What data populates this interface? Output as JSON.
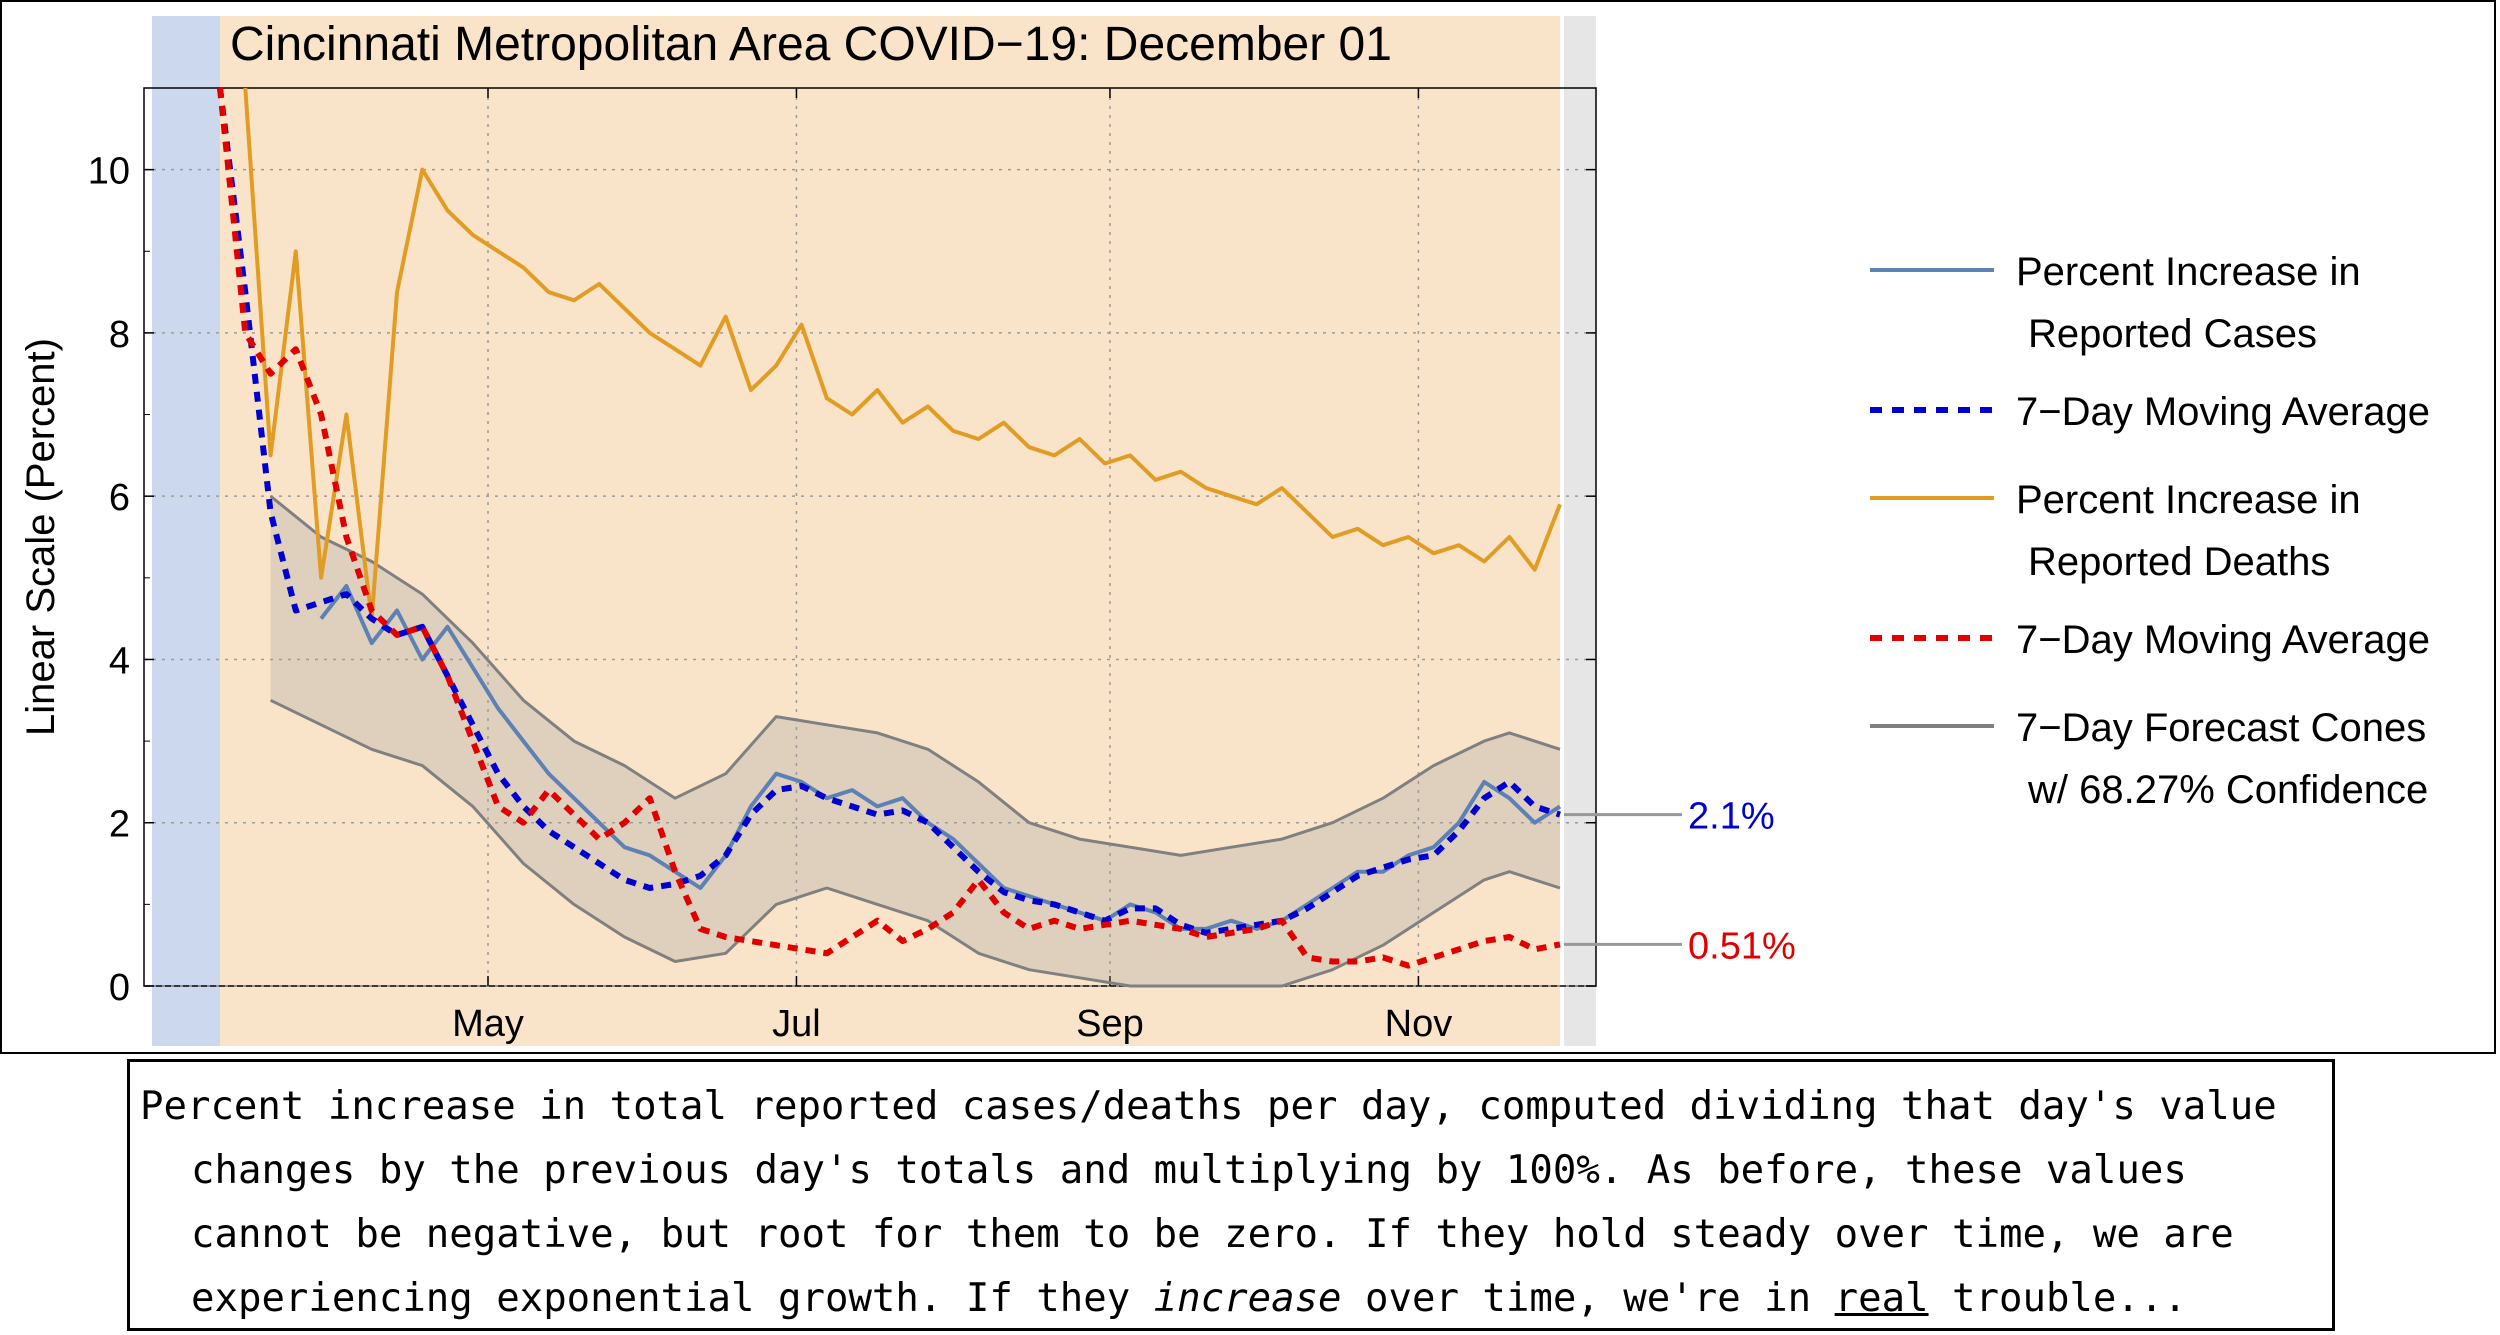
{
  "chart_data": {
    "type": "line",
    "title": "Cincinnati Metropolitan Area COVID−19: December 01",
    "xlabel": "",
    "ylabel": "Linear Scale (Percent)",
    "ylim": [
      0,
      11
    ],
    "x_domain_days": [
      0,
      265
    ],
    "x_origin_date": "2020-03-09",
    "x_ticks": [
      {
        "label": "May",
        "day": 53
      },
      {
        "label": "Jul",
        "day": 114
      },
      {
        "label": "Sep",
        "day": 176
      },
      {
        "label": "Nov",
        "day": 237
      }
    ],
    "y_ticks": [
      0,
      2,
      4,
      6,
      8,
      10
    ],
    "grid": true,
    "legend_position": "right",
    "legend": [
      {
        "id": "cases",
        "line1": "Percent Increase in",
        "line2": "Reported Cases",
        "color": "#5e81b5",
        "dash": "solid"
      },
      {
        "id": "cases_avg",
        "line1": "7−Day Moving Average",
        "line2": "",
        "color": "#0000d0",
        "dash": "dashed"
      },
      {
        "id": "deaths",
        "line1": "Percent Increase in",
        "line2": "Reported Deaths",
        "color": "#e19c24",
        "dash": "solid"
      },
      {
        "id": "deaths_avg",
        "line1": "7−Day Moving Average",
        "line2": "",
        "color": "#e00000",
        "dash": "dashed"
      },
      {
        "id": "forecast",
        "line1": "7−Day Forecast Cones",
        "line2": "w/ 68.27% Confidence",
        "color": "#808080",
        "dash": "solid"
      }
    ],
    "end_labels": [
      {
        "text": "2.1%",
        "value": 2.1,
        "color": "#0000d0"
      },
      {
        "text": "0.51%",
        "value": 0.51,
        "color": "#e00000"
      }
    ],
    "series": [
      {
        "name": "Percent Increase in Reported Cases",
        "color": "#5e81b5",
        "points": [
          [
            20,
            4.5
          ],
          [
            25,
            4.9
          ],
          [
            30,
            4.2
          ],
          [
            35,
            4.6
          ],
          [
            40,
            4.0
          ],
          [
            45,
            4.4
          ],
          [
            50,
            3.9
          ],
          [
            55,
            3.4
          ],
          [
            60,
            3.0
          ],
          [
            65,
            2.6
          ],
          [
            70,
            2.3
          ],
          [
            75,
            2.0
          ],
          [
            80,
            1.7
          ],
          [
            85,
            1.6
          ],
          [
            90,
            1.4
          ],
          [
            95,
            1.2
          ],
          [
            100,
            1.6
          ],
          [
            105,
            2.2
          ],
          [
            110,
            2.6
          ],
          [
            115,
            2.5
          ],
          [
            120,
            2.3
          ],
          [
            125,
            2.4
          ],
          [
            130,
            2.2
          ],
          [
            135,
            2.3
          ],
          [
            140,
            2.0
          ],
          [
            145,
            1.8
          ],
          [
            150,
            1.5
          ],
          [
            155,
            1.2
          ],
          [
            160,
            1.1
          ],
          [
            165,
            1.0
          ],
          [
            170,
            0.9
          ],
          [
            175,
            0.8
          ],
          [
            180,
            1.0
          ],
          [
            185,
            0.9
          ],
          [
            190,
            0.7
          ],
          [
            195,
            0.7
          ],
          [
            200,
            0.8
          ],
          [
            205,
            0.7
          ],
          [
            210,
            0.8
          ],
          [
            215,
            1.0
          ],
          [
            220,
            1.2
          ],
          [
            225,
            1.4
          ],
          [
            230,
            1.4
          ],
          [
            235,
            1.6
          ],
          [
            240,
            1.7
          ],
          [
            245,
            2.0
          ],
          [
            250,
            2.5
          ],
          [
            255,
            2.3
          ],
          [
            260,
            2.0
          ],
          [
            265,
            2.2
          ]
        ]
      },
      {
        "name": "Cases 7-Day Moving Average",
        "color": "#0000d0",
        "points": [
          [
            0,
            11.0
          ],
          [
            5,
            8.5
          ],
          [
            10,
            5.8
          ],
          [
            15,
            4.6
          ],
          [
            20,
            4.7
          ],
          [
            25,
            4.8
          ],
          [
            30,
            4.5
          ],
          [
            35,
            4.3
          ],
          [
            40,
            4.4
          ],
          [
            45,
            3.8
          ],
          [
            50,
            3.2
          ],
          [
            55,
            2.6
          ],
          [
            60,
            2.2
          ],
          [
            65,
            1.9
          ],
          [
            70,
            1.7
          ],
          [
            75,
            1.5
          ],
          [
            80,
            1.3
          ],
          [
            85,
            1.2
          ],
          [
            90,
            1.25
          ],
          [
            95,
            1.35
          ],
          [
            100,
            1.6
          ],
          [
            105,
            2.1
          ],
          [
            110,
            2.4
          ],
          [
            115,
            2.45
          ],
          [
            120,
            2.3
          ],
          [
            125,
            2.2
          ],
          [
            130,
            2.1
          ],
          [
            135,
            2.15
          ],
          [
            140,
            2.0
          ],
          [
            145,
            1.7
          ],
          [
            150,
            1.4
          ],
          [
            155,
            1.15
          ],
          [
            160,
            1.05
          ],
          [
            165,
            1.0
          ],
          [
            170,
            0.9
          ],
          [
            175,
            0.8
          ],
          [
            180,
            0.95
          ],
          [
            185,
            0.95
          ],
          [
            190,
            0.75
          ],
          [
            195,
            0.65
          ],
          [
            200,
            0.7
          ],
          [
            205,
            0.75
          ],
          [
            210,
            0.8
          ],
          [
            215,
            0.95
          ],
          [
            220,
            1.15
          ],
          [
            225,
            1.35
          ],
          [
            230,
            1.45
          ],
          [
            235,
            1.55
          ],
          [
            240,
            1.6
          ],
          [
            245,
            1.9
          ],
          [
            250,
            2.3
          ],
          [
            255,
            2.5
          ],
          [
            260,
            2.2
          ],
          [
            265,
            2.1
          ]
        ]
      },
      {
        "name": "Percent Increase in Reported Deaths",
        "color": "#e19c24",
        "points": [
          [
            5,
            11.0
          ],
          [
            10,
            6.5
          ],
          [
            15,
            9.0
          ],
          [
            20,
            5.0
          ],
          [
            25,
            7.0
          ],
          [
            30,
            4.5
          ],
          [
            35,
            8.5
          ],
          [
            40,
            10.0
          ],
          [
            45,
            9.5
          ],
          [
            50,
            9.2
          ],
          [
            55,
            9.0
          ],
          [
            60,
            8.8
          ],
          [
            65,
            8.5
          ],
          [
            70,
            8.4
          ],
          [
            75,
            8.6
          ],
          [
            80,
            8.3
          ],
          [
            85,
            8.0
          ],
          [
            90,
            7.8
          ],
          [
            95,
            7.6
          ],
          [
            100,
            8.2
          ],
          [
            105,
            7.3
          ],
          [
            110,
            7.6
          ],
          [
            115,
            8.1
          ],
          [
            120,
            7.2
          ],
          [
            125,
            7.0
          ],
          [
            130,
            7.3
          ],
          [
            135,
            6.9
          ],
          [
            140,
            7.1
          ],
          [
            145,
            6.8
          ],
          [
            150,
            6.7
          ],
          [
            155,
            6.9
          ],
          [
            160,
            6.6
          ],
          [
            165,
            6.5
          ],
          [
            170,
            6.7
          ],
          [
            175,
            6.4
          ],
          [
            180,
            6.5
          ],
          [
            185,
            6.2
          ],
          [
            190,
            6.3
          ],
          [
            195,
            6.1
          ],
          [
            200,
            6.0
          ],
          [
            205,
            5.9
          ],
          [
            210,
            6.1
          ],
          [
            215,
            5.8
          ],
          [
            220,
            5.5
          ],
          [
            225,
            5.6
          ],
          [
            230,
            5.4
          ],
          [
            235,
            5.5
          ],
          [
            240,
            5.3
          ],
          [
            245,
            5.4
          ],
          [
            250,
            5.2
          ],
          [
            255,
            5.5
          ],
          [
            260,
            5.1
          ],
          [
            265,
            5.9
          ]
        ]
      },
      {
        "name": "Deaths 7-Day Moving Average",
        "color": "#e00000",
        "points": [
          [
            0,
            11.0
          ],
          [
            5,
            8.0
          ],
          [
            10,
            7.5
          ],
          [
            15,
            7.8
          ],
          [
            20,
            7.0
          ],
          [
            25,
            5.5
          ],
          [
            30,
            4.6
          ],
          [
            35,
            4.3
          ],
          [
            40,
            4.4
          ],
          [
            45,
            3.8
          ],
          [
            50,
            3.0
          ],
          [
            55,
            2.2
          ],
          [
            60,
            2.0
          ],
          [
            65,
            2.4
          ],
          [
            70,
            2.1
          ],
          [
            75,
            1.8
          ],
          [
            80,
            2.0
          ],
          [
            85,
            2.3
          ],
          [
            90,
            1.4
          ],
          [
            95,
            0.7
          ],
          [
            100,
            0.6
          ],
          [
            105,
            0.55
          ],
          [
            110,
            0.5
          ],
          [
            115,
            0.45
          ],
          [
            120,
            0.4
          ],
          [
            125,
            0.6
          ],
          [
            130,
            0.8
          ],
          [
            135,
            0.55
          ],
          [
            140,
            0.7
          ],
          [
            145,
            0.9
          ],
          [
            150,
            1.3
          ],
          [
            155,
            0.9
          ],
          [
            160,
            0.7
          ],
          [
            165,
            0.8
          ],
          [
            170,
            0.7
          ],
          [
            175,
            0.75
          ],
          [
            180,
            0.8
          ],
          [
            185,
            0.75
          ],
          [
            190,
            0.7
          ],
          [
            195,
            0.6
          ],
          [
            200,
            0.65
          ],
          [
            205,
            0.7
          ],
          [
            210,
            0.8
          ],
          [
            215,
            0.35
          ],
          [
            220,
            0.3
          ],
          [
            225,
            0.3
          ],
          [
            230,
            0.35
          ],
          [
            235,
            0.25
          ],
          [
            240,
            0.35
          ],
          [
            245,
            0.45
          ],
          [
            250,
            0.55
          ],
          [
            255,
            0.6
          ],
          [
            260,
            0.45
          ],
          [
            265,
            0.51
          ]
        ]
      },
      {
        "name": "7-Day Forecast Cones upper",
        "color": "#808080",
        "points": [
          [
            10,
            6.0
          ],
          [
            20,
            5.5
          ],
          [
            30,
            5.2
          ],
          [
            40,
            4.8
          ],
          [
            50,
            4.2
          ],
          [
            60,
            3.5
          ],
          [
            70,
            3.0
          ],
          [
            80,
            2.7
          ],
          [
            90,
            2.3
          ],
          [
            100,
            2.6
          ],
          [
            110,
            3.3
          ],
          [
            120,
            3.2
          ],
          [
            130,
            3.1
          ],
          [
            140,
            2.9
          ],
          [
            150,
            2.5
          ],
          [
            160,
            2.0
          ],
          [
            170,
            1.8
          ],
          [
            180,
            1.7
          ],
          [
            190,
            1.6
          ],
          [
            200,
            1.7
          ],
          [
            210,
            1.8
          ],
          [
            220,
            2.0
          ],
          [
            230,
            2.3
          ],
          [
            240,
            2.7
          ],
          [
            250,
            3.0
          ],
          [
            255,
            3.1
          ],
          [
            265,
            2.9
          ]
        ]
      },
      {
        "name": "7-Day Forecast Cones lower",
        "color": "#808080",
        "points": [
          [
            10,
            3.5
          ],
          [
            20,
            3.2
          ],
          [
            30,
            2.9
          ],
          [
            40,
            2.7
          ],
          [
            50,
            2.2
          ],
          [
            60,
            1.5
          ],
          [
            70,
            1.0
          ],
          [
            80,
            0.6
          ],
          [
            90,
            0.3
          ],
          [
            100,
            0.4
          ],
          [
            110,
            1.0
          ],
          [
            120,
            1.2
          ],
          [
            130,
            1.0
          ],
          [
            140,
            0.8
          ],
          [
            150,
            0.4
          ],
          [
            160,
            0.2
          ],
          [
            170,
            0.1
          ],
          [
            180,
            0.0
          ],
          [
            190,
            0.0
          ],
          [
            200,
            0.0
          ],
          [
            210,
            0.0
          ],
          [
            220,
            0.2
          ],
          [
            230,
            0.5
          ],
          [
            240,
            0.9
          ],
          [
            250,
            1.3
          ],
          [
            255,
            1.4
          ],
          [
            265,
            1.2
          ]
        ]
      }
    ]
  },
  "caption": {
    "line1": "Percent increase in total reported cases/deaths per day, computed dividing that day's value",
    "line2": "changes by the previous day's totals and multiplying by 100%. As before, these values",
    "line3": "cannot be negative, but root for them to be zero. If they hold steady over time, we are",
    "line4a": "experiencing exponential growth. If they ",
    "line4_em": "increase",
    "line4b": " over time, we're in ",
    "line4_u": "real",
    "line4c": " trouble..."
  }
}
